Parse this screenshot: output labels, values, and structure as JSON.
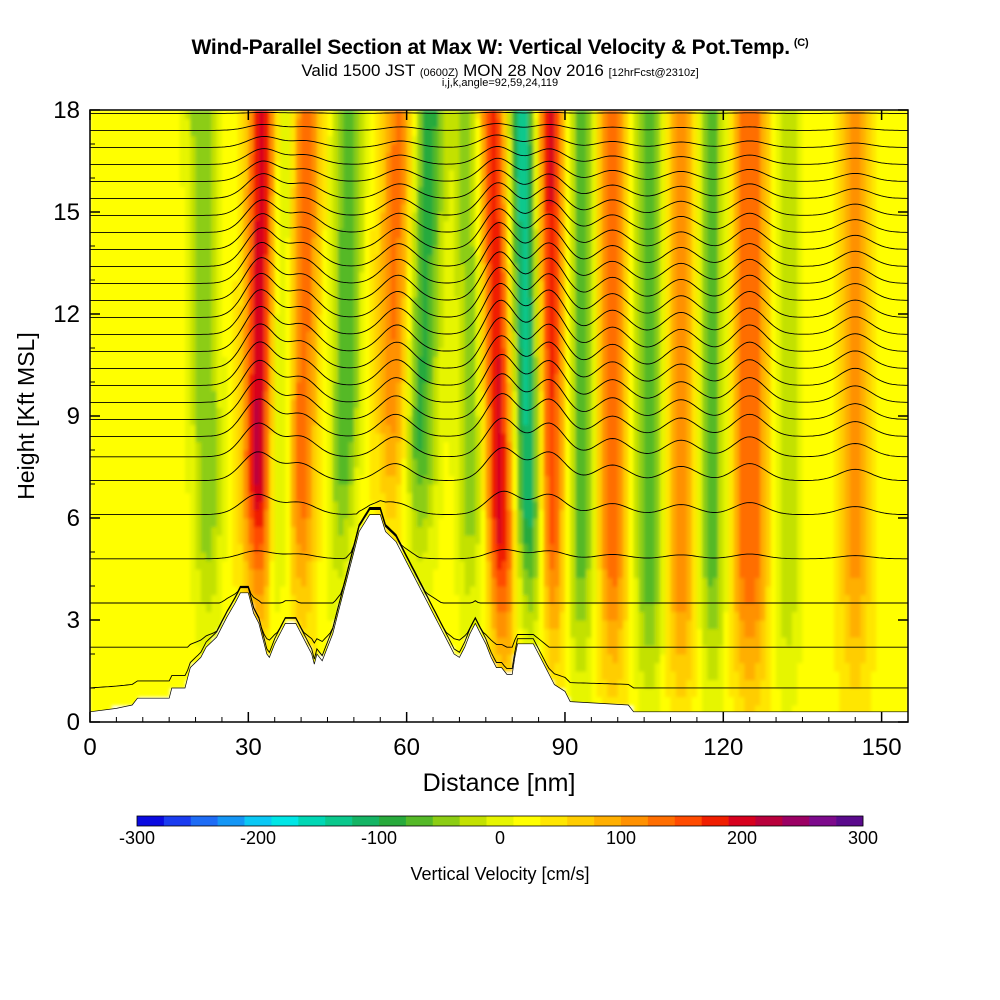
{
  "title": {
    "main": "Wind-Parallel Section at Max W: Vertical Velocity & Pot.Temp.",
    "copyright_mark": "(C)",
    "valid_prefix": "Valid 1500 JST",
    "valid_zulu": "(0600Z)",
    "valid_date": "MON 28 Nov 2016",
    "forecast": "[12hrFcst@2310z]",
    "indices": "i,j,k,angle=92,59,24,119"
  },
  "chart_data": {
    "type": "heatmap",
    "xlabel": "Distance [nm]",
    "ylabel": "Height [Kft MSL]",
    "xlim": [
      0,
      155
    ],
    "ylim": [
      0,
      18
    ],
    "x_ticks": [
      "0",
      "30",
      "60",
      "90",
      "120",
      "150"
    ],
    "y_ticks": [
      "0",
      "3",
      "6",
      "9",
      "12",
      "15",
      "18"
    ],
    "colorbar": {
      "label": "Vertical Velocity [cm/s]",
      "tick_labels": [
        "-300",
        "-200",
        "-100",
        "0",
        "100",
        "200",
        "300"
      ],
      "range": [
        -300,
        300
      ],
      "colors": [
        "#0a0ae0",
        "#1a3cf0",
        "#1e6cf5",
        "#1496f5",
        "#0ac8f5",
        "#00e6e6",
        "#00d7b4",
        "#0ac88c",
        "#14b464",
        "#28aa3c",
        "#55b928",
        "#8ccd14",
        "#c3e100",
        "#e6f500",
        "#ffff00",
        "#ffe600",
        "#ffcd00",
        "#ffaf00",
        "#ff9100",
        "#ff6e00",
        "#ff4b00",
        "#f01e00",
        "#d7001e",
        "#b9003c",
        "#9b0064",
        "#7d0a8c",
        "#5a0a8c"
      ]
    },
    "terrain_nm_kft": [
      [
        0,
        0.3
      ],
      [
        5,
        0.4
      ],
      [
        8,
        0.5
      ],
      [
        9,
        0.7
      ],
      [
        15,
        0.7
      ],
      [
        15.5,
        1.0
      ],
      [
        18,
        1.0
      ],
      [
        18.5,
        1.3
      ],
      [
        19,
        1.6
      ],
      [
        21,
        1.9
      ],
      [
        22,
        2.2
      ],
      [
        24,
        2.5
      ],
      [
        25,
        2.8
      ],
      [
        26,
        3.1
      ],
      [
        27.5,
        3.5
      ],
      [
        28.5,
        3.8
      ],
      [
        30,
        3.8
      ],
      [
        30.5,
        3.5
      ],
      [
        31,
        3.2
      ],
      [
        32,
        2.9
      ],
      [
        32.5,
        2.6
      ],
      [
        33,
        2.3
      ],
      [
        33.5,
        2.0
      ],
      [
        34,
        1.9
      ],
      [
        35,
        2.3
      ],
      [
        36,
        2.6
      ],
      [
        37,
        2.9
      ],
      [
        39,
        2.9
      ],
      [
        40,
        2.6
      ],
      [
        41,
        2.3
      ],
      [
        42,
        2.0
      ],
      [
        42.5,
        1.7
      ],
      [
        43,
        2.0
      ],
      [
        44,
        1.8
      ],
      [
        45,
        2.2
      ],
      [
        46,
        2.6
      ],
      [
        47,
        3.2
      ],
      [
        48,
        3.8
      ],
      [
        49,
        4.4
      ],
      [
        50,
        5.0
      ],
      [
        51,
        5.6
      ],
      [
        53,
        6.1
      ],
      [
        55,
        6.1
      ],
      [
        56,
        5.6
      ],
      [
        58,
        5.3
      ],
      [
        59,
        5.0
      ],
      [
        60,
        4.7
      ],
      [
        61,
        4.4
      ],
      [
        62,
        4.1
      ],
      [
        63,
        3.8
      ],
      [
        64,
        3.5
      ],
      [
        65,
        3.2
      ],
      [
        66,
        2.9
      ],
      [
        67,
        2.6
      ],
      [
        68,
        2.3
      ],
      [
        69,
        2.0
      ],
      [
        70,
        1.9
      ],
      [
        71,
        2.2
      ],
      [
        72,
        2.6
      ],
      [
        73,
        2.9
      ],
      [
        74,
        2.6
      ],
      [
        75,
        2.3
      ],
      [
        76,
        1.9
      ],
      [
        77,
        1.6
      ],
      [
        78,
        1.6
      ],
      [
        79,
        1.4
      ],
      [
        80,
        1.4
      ],
      [
        80.5,
        1.9
      ],
      [
        81,
        2.3
      ],
      [
        84,
        2.3
      ],
      [
        85,
        2.0
      ],
      [
        86,
        1.7
      ],
      [
        87,
        1.4
      ],
      [
        88,
        1.1
      ],
      [
        90,
        0.9
      ],
      [
        91,
        0.6
      ],
      [
        102,
        0.5
      ],
      [
        103,
        0.3
      ],
      [
        155,
        0.3
      ]
    ],
    "updraft_bands": [
      {
        "x_low_nm": 31,
        "x_high_nm": 33,
        "tilt_nm": 2.0,
        "w_cms": 200
      },
      {
        "x_low_nm": 39,
        "x_high_nm": 41,
        "tilt_nm": 2.0,
        "w_cms": 120
      },
      {
        "x_low_nm": 57,
        "x_high_nm": 59,
        "tilt_nm": 2.5,
        "w_cms": 120
      },
      {
        "x_low_nm": 79,
        "x_high_nm": 77,
        "tilt_nm": 2.5,
        "w_cms": 230
      },
      {
        "x_low_nm": 87,
        "x_high_nm": 87,
        "tilt_nm": 2.0,
        "w_cms": 200
      },
      {
        "x_low_nm": 99,
        "x_high_nm": 99,
        "tilt_nm": 2.0,
        "w_cms": 110
      },
      {
        "x_low_nm": 112,
        "x_high_nm": 112,
        "tilt_nm": 2.0,
        "w_cms": 100
      },
      {
        "x_low_nm": 125,
        "x_high_nm": 125,
        "tilt_nm": 2.5,
        "w_cms": 120
      },
      {
        "x_low_nm": 145,
        "x_high_nm": 145,
        "tilt_nm": 2.0,
        "w_cms": 80
      }
    ],
    "downdraft_bands": [
      {
        "x_low_nm": 23,
        "x_high_nm": 21,
        "tilt_nm": 2.0,
        "w_cms": -80
      },
      {
        "x_low_nm": 36,
        "x_high_nm": 36,
        "tilt_nm": 2.0,
        "w_cms": -80
      },
      {
        "x_low_nm": 48,
        "x_high_nm": 49,
        "tilt_nm": 2.0,
        "w_cms": -100
      },
      {
        "x_low_nm": 60,
        "x_high_nm": 64,
        "tilt_nm": 2.5,
        "w_cms": -130
      },
      {
        "x_low_nm": 73,
        "x_high_nm": 72,
        "tilt_nm": 2.0,
        "w_cms": -90
      },
      {
        "x_low_nm": 84,
        "x_high_nm": 81,
        "tilt_nm": 3.0,
        "w_cms": -210
      },
      {
        "x_low_nm": 93,
        "x_high_nm": 93,
        "tilt_nm": 2.0,
        "w_cms": -90
      },
      {
        "x_low_nm": 106,
        "x_high_nm": 106,
        "tilt_nm": 2.0,
        "w_cms": -100
      },
      {
        "x_low_nm": 118,
        "x_high_nm": 118,
        "tilt_nm": 2.0,
        "w_cms": -90
      },
      {
        "x_low_nm": 132,
        "x_high_nm": 132,
        "tilt_nm": 2.0,
        "w_cms": -60
      }
    ],
    "isentrope_base_heights_kft": [
      0.9,
      2.2,
      3.5,
      4.8,
      6.1,
      7.1,
      7.8,
      8.4,
      8.9,
      9.4,
      9.9,
      10.4,
      10.9,
      11.4,
      11.9,
      12.4,
      12.9,
      13.4,
      13.9,
      14.4,
      14.9,
      15.4,
      15.9,
      16.4,
      16.9,
      17.4,
      17.9
    ],
    "grid": false
  }
}
